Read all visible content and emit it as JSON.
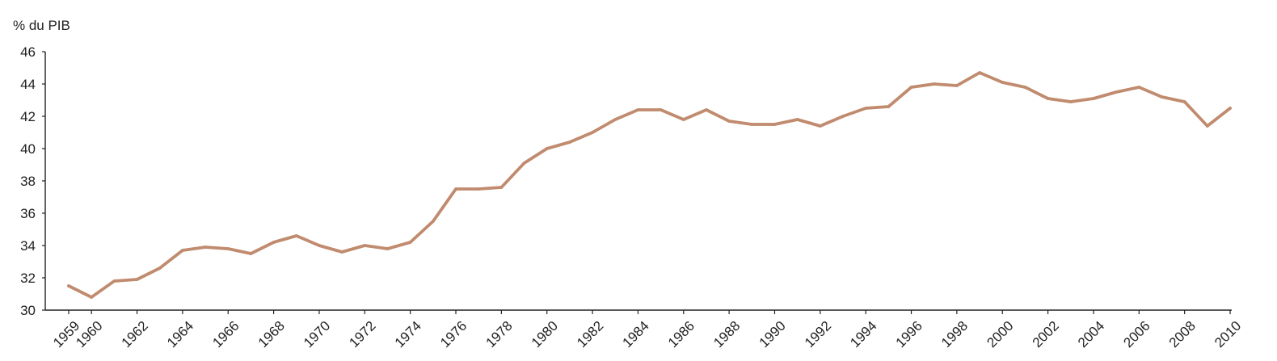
{
  "chart_data": {
    "type": "line",
    "title": "",
    "xlabel": "",
    "ylabel": "% du PIB",
    "ylim": [
      30,
      46
    ],
    "yticks": [
      30,
      32,
      34,
      36,
      38,
      40,
      42,
      44,
      46
    ],
    "xlim": [
      1959,
      2010
    ],
    "xticks": [
      1959,
      1960,
      1962,
      1964,
      1966,
      1968,
      1970,
      1972,
      1974,
      1976,
      1978,
      1980,
      1982,
      1984,
      1986,
      1988,
      1990,
      1992,
      1994,
      1996,
      1998,
      2000,
      2002,
      2004,
      2006,
      2008,
      2010
    ],
    "grid": false,
    "legend": "none",
    "color": "#c08b6e",
    "x": [
      1959,
      1960,
      1961,
      1962,
      1963,
      1964,
      1965,
      1966,
      1967,
      1968,
      1969,
      1970,
      1971,
      1972,
      1973,
      1974,
      1975,
      1976,
      1977,
      1978,
      1979,
      1980,
      1981,
      1982,
      1983,
      1984,
      1985,
      1986,
      1987,
      1988,
      1989,
      1990,
      1991,
      1992,
      1993,
      1994,
      1995,
      1996,
      1997,
      1998,
      1999,
      2000,
      2001,
      2002,
      2003,
      2004,
      2005,
      2006,
      2007,
      2008,
      2009,
      2010
    ],
    "values": [
      31.5,
      30.8,
      31.8,
      31.9,
      32.6,
      33.7,
      33.9,
      33.8,
      33.5,
      34.2,
      34.6,
      34.0,
      33.6,
      34.0,
      33.8,
      34.2,
      35.5,
      37.5,
      37.5,
      37.6,
      39.1,
      40.0,
      40.4,
      41.0,
      41.8,
      42.4,
      42.4,
      41.8,
      42.4,
      41.7,
      41.5,
      41.5,
      41.8,
      41.4,
      42.0,
      42.5,
      42.6,
      43.8,
      44.0,
      43.9,
      44.7,
      44.1,
      43.8,
      43.1,
      42.9,
      43.1,
      43.5,
      43.8,
      43.2,
      42.9,
      41.4,
      42.5
    ]
  }
}
